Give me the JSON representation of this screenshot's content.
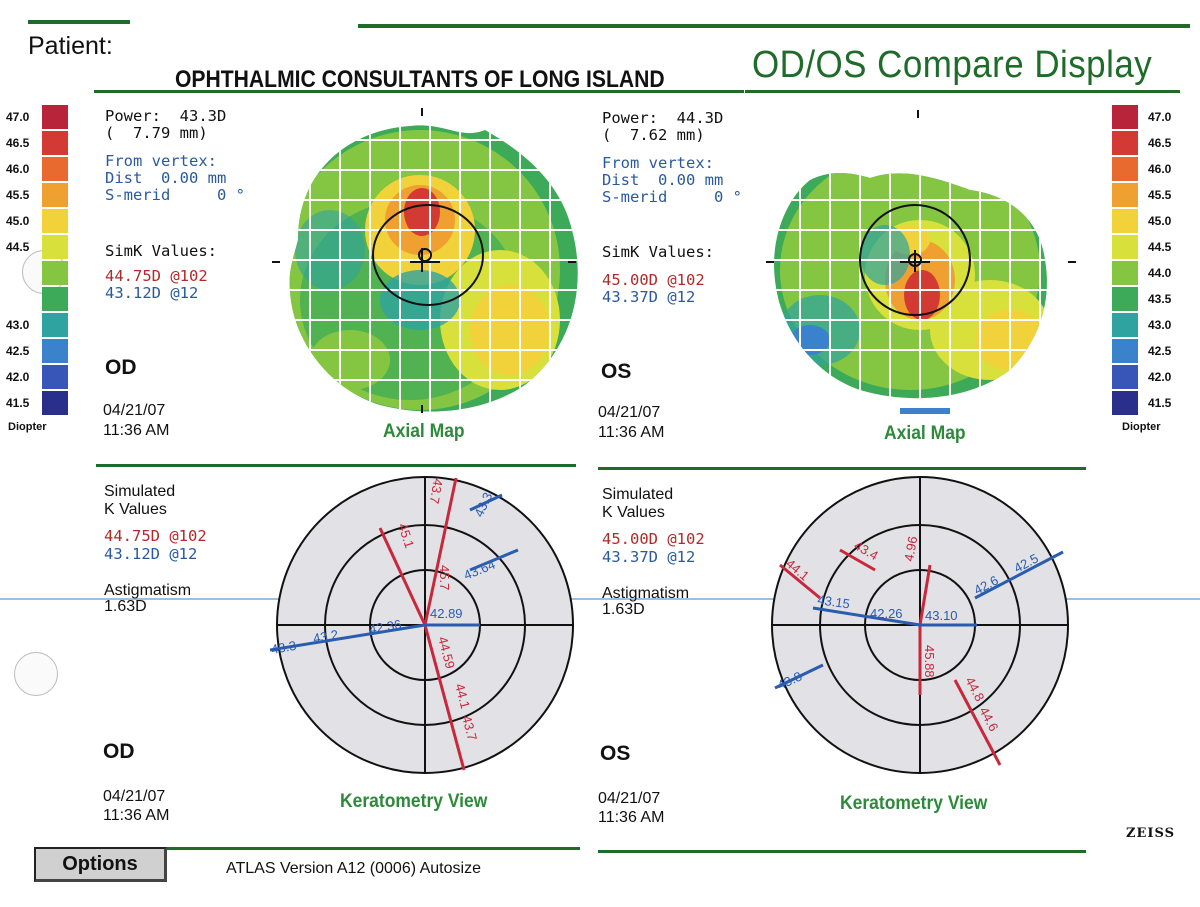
{
  "header": {
    "patient_label": "Patient:",
    "clinic_name": "OPHTHALMIC CONSULTANTS OF LONG ISLAND",
    "display_title": "OD/OS Compare Display"
  },
  "scale": {
    "values": [
      "47.0",
      "46.5",
      "46.0",
      "45.5",
      "45.0",
      "44.5",
      "44.0",
      "43.5",
      "43.0",
      "42.5",
      "42.0",
      "41.5"
    ],
    "left_visible": [
      "47.0",
      "46.5",
      "46.0",
      "45.5",
      "45.0",
      "44.5",
      "",
      "",
      "43.0",
      "42.5",
      "42.0",
      "41.5"
    ],
    "unit": "Diopter",
    "colors": [
      "#b8243a",
      "#d33a34",
      "#e86a2e",
      "#f0a030",
      "#f2d23a",
      "#d8e03c",
      "#84c642",
      "#3caa58",
      "#2ea3a0",
      "#3a82cc",
      "#3856b8",
      "#2b2f8c"
    ]
  },
  "od": {
    "power_line": "Power:  43.3D",
    "radius_line": "(  7.79 mm)",
    "from_vertex": "From vertex:",
    "dist": "Dist  0.00 mm",
    "smerid": "S-merid     0 °",
    "simk_label": "SimK Values:",
    "simk_red": "44.75D @102",
    "simk_blue": "43.12D @12",
    "eye": "OD",
    "date": "04/21/07",
    "time": "11:36 AM",
    "map_title": "Axial Map",
    "kv_label1": "Simulated",
    "kv_label2": "K Values",
    "kv_red": "44.75D @102",
    "kv_blue": "43.12D @12",
    "astig_label": "Astigmatism",
    "astig_value": "1.63D",
    "eye2": "OD",
    "date2": "04/21/07",
    "time2": "11:36 AM",
    "kview_title": "Keratometry View",
    "k_red": [
      "45.7",
      "45.1",
      "43.7",
      "44.59",
      "44.1",
      "43.7"
    ],
    "k_blue": [
      "42.89",
      "43.64",
      "43.3",
      "42.36",
      "43.2",
      "43.3"
    ]
  },
  "os": {
    "power_line": "Power:  44.3D",
    "radius_line": "(  7.62 mm)",
    "from_vertex": "From vertex:",
    "dist": "Dist  0.00 mm",
    "smerid": "S-merid     0 °",
    "simk_label": "SimK Values:",
    "simk_red": "45.00D @102",
    "simk_blue": "43.37D @12",
    "eye": "OS",
    "date": "04/21/07",
    "time": "11:36 AM",
    "map_title": "Axial Map",
    "kv_label1": "Simulated",
    "kv_label2": "K Values",
    "kv_red": "45.00D @102",
    "kv_blue": "43.37D @12",
    "astig_label": "Astigmatism",
    "astig_value": "1.63D",
    "eye2": "OS",
    "date2": "04/21/07",
    "time2": "11:36 AM",
    "kview_title": "Keratometry View",
    "k_red": [
      "45.88",
      "43.4",
      "44.1",
      "44.8",
      "44.6"
    ],
    "k_red_top": "4.96",
    "k_blue": [
      "43.10",
      "42.26",
      "43.15",
      "42.6",
      "42.5",
      "43.8"
    ]
  },
  "footer": {
    "options_label": "Options",
    "version_text": "ATLAS  Version A12 (0006)  Autosize",
    "brand": "ZEISS"
  }
}
